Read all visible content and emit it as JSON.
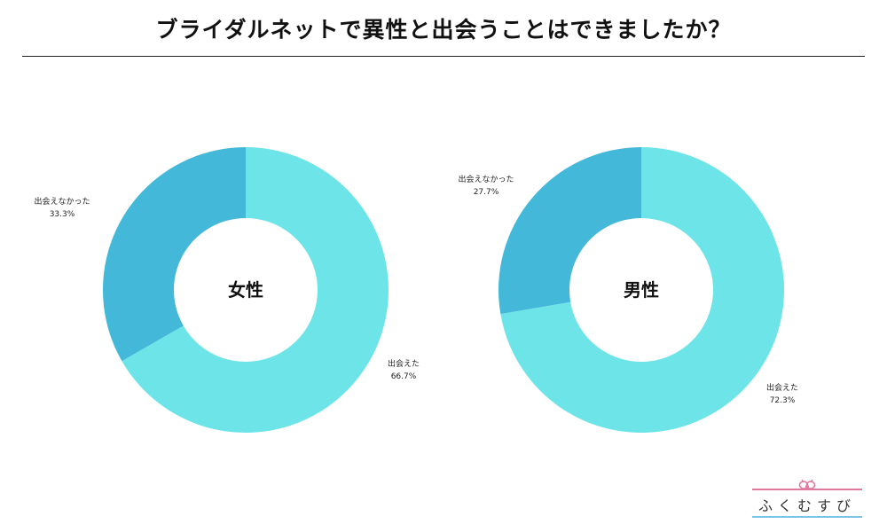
{
  "title": "ブライダルネットで異性と出会うことはできましたか？",
  "colors": {
    "met": "#6ce4e8",
    "not_met": "#44b8d8",
    "logo_pink": "#e07aa0",
    "logo_blue": "#7cc3e6"
  },
  "chart_data": [
    {
      "type": "pie",
      "variant": "donut",
      "center_label": "女性",
      "slices": [
        {
          "label": "出会えた",
          "value": 66.7,
          "display": "66.7%",
          "color": "#6ce4e8"
        },
        {
          "label": "出会えなかった",
          "value": 33.3,
          "display": "33.3%",
          "color": "#44b8d8"
        }
      ],
      "start": "12 o'clock",
      "direction": "clockwise"
    },
    {
      "type": "pie",
      "variant": "donut",
      "center_label": "男性",
      "slices": [
        {
          "label": "出会えた",
          "value": 72.3,
          "display": "72.3%",
          "color": "#6ce4e8"
        },
        {
          "label": "出会えなかった",
          "value": 27.7,
          "display": "27.7%",
          "color": "#44b8d8"
        }
      ],
      "start": "12 o'clock",
      "direction": "clockwise"
    }
  ],
  "logo": {
    "text": "ふくむすび",
    "icon": "knot-icon"
  }
}
